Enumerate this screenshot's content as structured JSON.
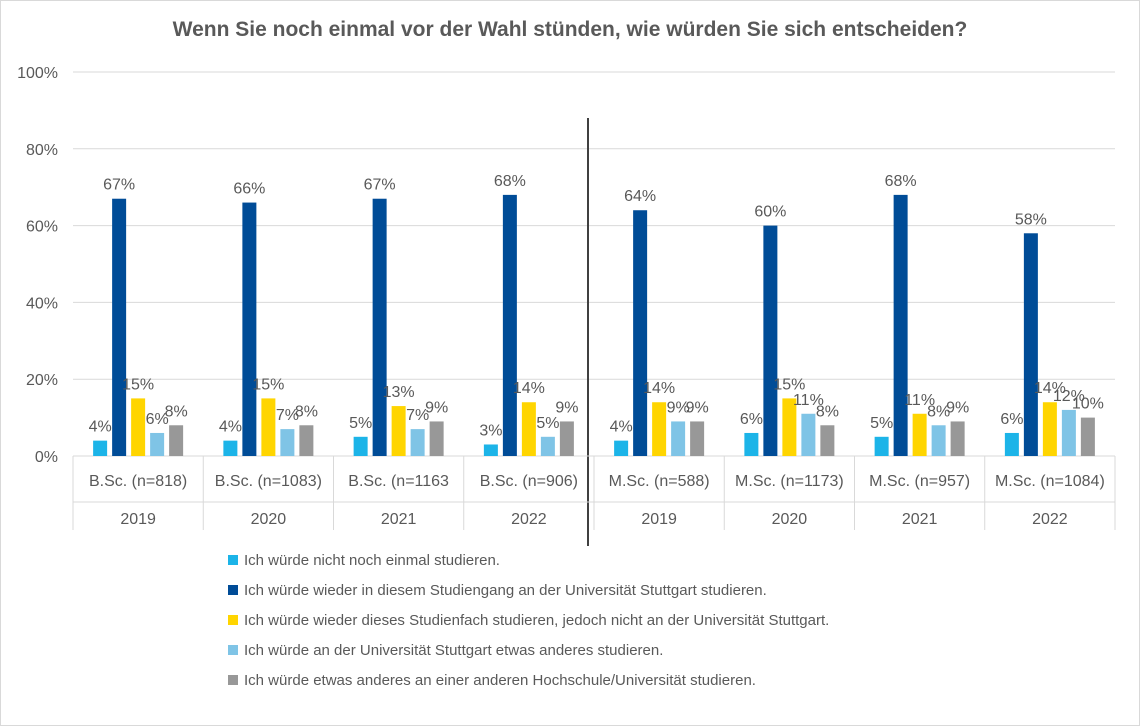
{
  "chart_data": {
    "type": "bar",
    "title": "Wenn Sie noch einmal vor der Wahl stünden, wie würden Sie sich entscheiden?",
    "ylim": [
      0,
      100
    ],
    "yticks": [
      "0%",
      "20%",
      "40%",
      "60%",
      "80%",
      "100%"
    ],
    "grid": true,
    "legend_position": "bottom",
    "categories": [
      {
        "label": "B.Sc. (n=818)",
        "year": "2019"
      },
      {
        "label": "B.Sc. (n=1083)",
        "year": "2020"
      },
      {
        "label": "B.Sc. (n=1163",
        "year": "2021"
      },
      {
        "label": "B.Sc. (n=906)",
        "year": "2022"
      },
      {
        "label": "M.Sc. (n=588)",
        "year": "2019"
      },
      {
        "label": "M.Sc. (n=1173)",
        "year": "2020"
      },
      {
        "label": "M.Sc. (n=957)",
        "year": "2021"
      },
      {
        "label": "M.Sc. (n=1084)",
        "year": "2022"
      }
    ],
    "series": [
      {
        "name": "Ich würde nicht noch einmal studieren.",
        "color": "#1cb4e8",
        "values": [
          4,
          4,
          5,
          3,
          4,
          6,
          5,
          6
        ],
        "labels": [
          "4%",
          "4%",
          "5%",
          "3%",
          "4%",
          "6%",
          "5%",
          "6%"
        ]
      },
      {
        "name": "Ich würde wieder in diesem Studiengang an der Universität Stuttgart studieren.",
        "color": "#004c97",
        "values": [
          67,
          66,
          67,
          68,
          64,
          60,
          68,
          58
        ],
        "labels": [
          "67%",
          "66%",
          "67%",
          "68%",
          "64%",
          "60%",
          "68%",
          "58%"
        ]
      },
      {
        "name": "Ich würde wieder dieses Studienfach studieren, jedoch nicht an der Universität Stuttgart.",
        "color": "#ffd500",
        "values": [
          15,
          15,
          13,
          14,
          14,
          15,
          11,
          14
        ],
        "labels": [
          "15%",
          "15%",
          "13%",
          "14%",
          "14%",
          "15%",
          "11%",
          "14%"
        ]
      },
      {
        "name": "Ich würde an der Universität Stuttgart etwas anderes studieren.",
        "color": "#7fc4e6",
        "values": [
          6,
          7,
          7,
          5,
          9,
          11,
          8,
          12
        ],
        "labels": [
          "6%",
          "7%",
          "7%",
          "5%",
          "9%",
          "11%",
          "8%",
          "12%"
        ]
      },
      {
        "name": "Ich würde etwas anderes an einer anderen Hochschule/Universität studieren.",
        "color": "#989898",
        "values": [
          8,
          8,
          9,
          9,
          9,
          8,
          9,
          10
        ],
        "labels": [
          "8%",
          "8%",
          "9%",
          "9%",
          "9%",
          "8%",
          "9%",
          "10%"
        ]
      }
    ]
  }
}
